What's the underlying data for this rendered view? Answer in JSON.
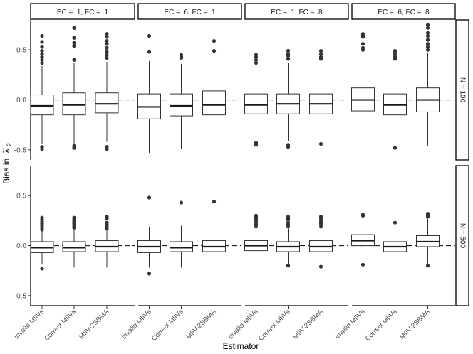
{
  "chart_data": {
    "type": "boxplot",
    "xlabel": "Estimator",
    "ylabel": "Bias in",
    "ylabel_symbol": "λ̂",
    "ylabel_subscript": "2",
    "categories": [
      "Invalid MIIVs",
      "Correct MIIVs",
      "MIIV-2SBMA"
    ],
    "columns": [
      "EC = .1, FC = .1",
      "EC = .6, FC = .1",
      "EC = .1, FC = .8",
      "EC = .6, FC = .8"
    ],
    "rows": [
      "N = 100",
      "N = 500"
    ],
    "ylim": [
      -0.6,
      0.8
    ],
    "yticks": [
      -0.5,
      0.0,
      0.5
    ],
    "ytick_labels": [
      "-0.5",
      "0.0",
      "0.5"
    ],
    "reference_line": 0,
    "panels": [
      {
        "row": "N = 100",
        "column": "EC = .1, FC = .1",
        "boxes": [
          {
            "category": "Invalid MIIVs",
            "whisker_low": -0.44,
            "q1": -0.15,
            "median": -0.06,
            "q3": 0.05,
            "whisker_high": 0.34,
            "outliers": [
              0.64,
              0.58,
              0.53,
              0.49,
              0.46,
              0.43,
              0.4,
              0.37,
              -0.47,
              -0.49
            ]
          },
          {
            "category": "Correct MIIVs",
            "whisker_low": -0.44,
            "q1": -0.15,
            "median": -0.05,
            "q3": 0.07,
            "whisker_high": 0.37,
            "outliers": [
              0.72,
              0.62,
              0.57,
              0.54,
              0.4,
              -0.46,
              -0.48
            ]
          },
          {
            "category": "MIIV-2SBMA",
            "whisker_low": -0.42,
            "q1": -0.13,
            "median": -0.04,
            "q3": 0.07,
            "whisker_high": 0.38,
            "outliers": [
              0.66,
              0.63,
              0.59,
              0.56,
              0.52,
              0.48,
              0.45,
              0.42,
              -0.47,
              -0.49
            ]
          }
        ]
      },
      {
        "row": "N = 100",
        "column": "EC = .6, FC = .1",
        "boxes": [
          {
            "category": "Invalid MIIVs",
            "whisker_low": -0.53,
            "q1": -0.19,
            "median": -0.07,
            "q3": 0.06,
            "whisker_high": 0.39,
            "outliers": [
              0.64,
              0.48
            ]
          },
          {
            "category": "Correct MIIVs",
            "whisker_low": -0.49,
            "q1": -0.16,
            "median": -0.06,
            "q3": 0.06,
            "whisker_high": 0.36,
            "outliers": [
              0.45,
              0.43,
              0.42
            ]
          },
          {
            "category": "MIIV-2SBMA",
            "whisker_low": -0.49,
            "q1": -0.15,
            "median": -0.05,
            "q3": 0.09,
            "whisker_high": 0.44,
            "outliers": [
              0.59,
              0.49
            ]
          }
        ]
      },
      {
        "row": "N = 100",
        "column": "EC = .1, FC = .8",
        "boxes": [
          {
            "category": "Invalid MIIVs",
            "whisker_low": -0.39,
            "q1": -0.14,
            "median": -0.05,
            "q3": 0.06,
            "whisker_high": 0.34,
            "outliers": [
              0.45,
              0.43,
              0.4,
              0.37,
              -0.43,
              -0.45
            ]
          },
          {
            "category": "Correct MIIVs",
            "whisker_low": -0.41,
            "q1": -0.14,
            "median": -0.04,
            "q3": 0.06,
            "whisker_high": 0.37,
            "outliers": [
              0.49,
              0.46,
              0.44,
              0.41,
              -0.45,
              -0.47
            ]
          },
          {
            "category": "MIIV-2SBMA",
            "whisker_low": -0.42,
            "q1": -0.14,
            "median": -0.04,
            "q3": 0.06,
            "whisker_high": 0.38,
            "outliers": [
              0.49,
              0.46,
              0.43,
              0.41,
              -0.44
            ]
          }
        ]
      },
      {
        "row": "N = 100",
        "column": "EC = .6, FC = .8",
        "boxes": [
          {
            "category": "Invalid MIIVs",
            "whisker_low": -0.47,
            "q1": -0.11,
            "median": 0.0,
            "q3": 0.12,
            "whisker_high": 0.46,
            "outliers": [
              0.66,
              0.65,
              0.63,
              0.56,
              0.52,
              0.5
            ]
          },
          {
            "category": "Correct MIIVs",
            "whisker_low": -0.44,
            "q1": -0.15,
            "median": -0.05,
            "q3": 0.06,
            "whisker_high": 0.38,
            "outliers": [
              0.49,
              0.47,
              0.45,
              0.43,
              0.41,
              -0.48
            ]
          },
          {
            "category": "MIIV-2SBMA",
            "whisker_low": -0.46,
            "q1": -0.12,
            "median": 0.0,
            "q3": 0.12,
            "whisker_high": 0.47,
            "outliers": [
              0.75,
              0.72,
              0.67,
              0.64,
              0.6,
              0.56,
              0.53,
              0.5
            ]
          }
        ]
      },
      {
        "row": "N = 500",
        "column": "EC = .1, FC = .1",
        "boxes": [
          {
            "category": "Invalid MIIVs",
            "whisker_low": -0.19,
            "q1": -0.07,
            "median": -0.02,
            "q3": 0.04,
            "whisker_high": 0.15,
            "outliers": [
              0.28,
              0.26,
              0.24,
              0.22,
              0.2,
              0.18,
              0.16,
              -0.23
            ]
          },
          {
            "category": "Correct MIIVs",
            "whisker_low": -0.22,
            "q1": -0.06,
            "median": -0.02,
            "q3": 0.04,
            "whisker_high": 0.16,
            "outliers": [
              0.28,
              0.26,
              0.24,
              0.22,
              0.2,
              0.18
            ]
          },
          {
            "category": "MIIV-2SBMA",
            "whisker_low": -0.22,
            "q1": -0.06,
            "median": -0.01,
            "q3": 0.05,
            "whisker_high": 0.16,
            "outliers": [
              0.29,
              0.27,
              0.23,
              0.21,
              0.19,
              0.17
            ]
          }
        ]
      },
      {
        "row": "N = 500",
        "column": "EC = .6, FC = .1",
        "boxes": [
          {
            "category": "Invalid MIIVs",
            "whisker_low": -0.22,
            "q1": -0.07,
            "median": -0.01,
            "q3": 0.05,
            "whisker_high": 0.19,
            "outliers": [
              0.48,
              -0.28
            ]
          },
          {
            "category": "Correct MIIVs",
            "whisker_low": -0.22,
            "q1": -0.06,
            "median": -0.02,
            "q3": 0.04,
            "whisker_high": 0.2,
            "outliers": [
              0.43
            ]
          },
          {
            "category": "MIIV-2SBMA",
            "whisker_low": -0.22,
            "q1": -0.06,
            "median": -0.01,
            "q3": 0.05,
            "whisker_high": 0.21,
            "outliers": [
              0.44
            ]
          }
        ]
      },
      {
        "row": "N = 500",
        "column": "EC = .1, FC = .8",
        "boxes": [
          {
            "category": "Invalid MIIVs",
            "whisker_low": -0.19,
            "q1": -0.05,
            "median": 0.0,
            "q3": 0.05,
            "whisker_high": 0.18,
            "outliers": [
              0.3,
              0.29,
              0.27,
              0.25,
              0.23,
              0.21,
              0.19
            ]
          },
          {
            "category": "Correct MIIVs",
            "whisker_low": -0.19,
            "q1": -0.06,
            "median": -0.01,
            "q3": 0.04,
            "whisker_high": 0.17,
            "outliers": [
              0.29,
              0.27,
              0.26,
              0.23,
              0.21,
              0.19,
              -0.2
            ]
          },
          {
            "category": "MIIV-2SBMA",
            "whisker_low": -0.18,
            "q1": -0.06,
            "median": -0.01,
            "q3": 0.05,
            "whisker_high": 0.17,
            "outliers": [
              0.29,
              0.28,
              0.26,
              0.24,
              0.22,
              0.19,
              -0.21
            ]
          }
        ]
      },
      {
        "row": "N = 500",
        "column": "EC = .6, FC = .8",
        "boxes": [
          {
            "category": "Invalid MIIVs",
            "whisker_low": -0.18,
            "q1": 0.0,
            "median": 0.05,
            "q3": 0.11,
            "whisker_high": 0.28,
            "outliers": [
              0.31,
              0.3,
              -0.19
            ]
          },
          {
            "category": "Correct MIIVs",
            "whisker_low": -0.19,
            "q1": -0.06,
            "median": -0.01,
            "q3": 0.04,
            "whisker_high": 0.2,
            "outliers": [
              0.23
            ]
          },
          {
            "category": "MIIV-2SBMA",
            "whisker_low": -0.18,
            "q1": -0.01,
            "median": 0.04,
            "q3": 0.1,
            "whisker_high": 0.27,
            "outliers": [
              0.32,
              0.31,
              0.3,
              0.29,
              -0.2
            ]
          }
        ]
      }
    ]
  }
}
